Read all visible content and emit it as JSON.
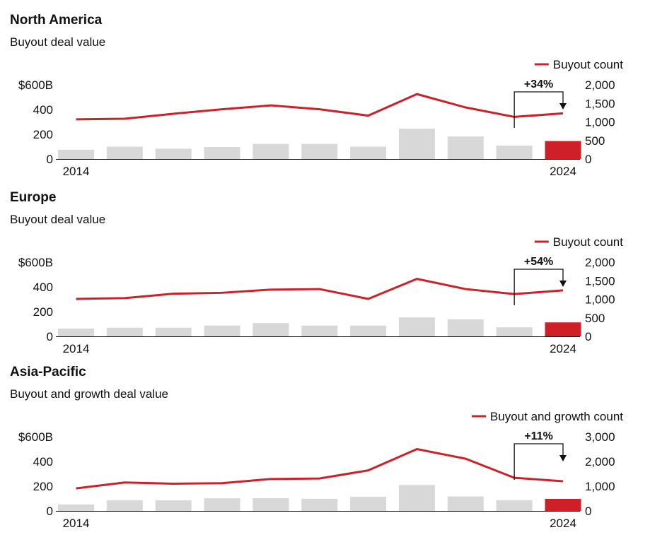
{
  "colors": {
    "bar": "#d8d8d8",
    "highlight": "#cf2027",
    "line": "#cf2027",
    "axis": "#111111"
  },
  "chart_data": [
    {
      "type": "bar",
      "title": "North America",
      "subtitle": "Buyout deal value",
      "categories": [
        "2014",
        "2015",
        "2016",
        "2017",
        "2018",
        "2019",
        "2020",
        "2021",
        "2022",
        "2023",
        "2024"
      ],
      "x_tick_labels": [
        "2014",
        "2024"
      ],
      "series": [
        {
          "axis": "left",
          "values": [
            75,
            100,
            83,
            97,
            122,
            122,
            100,
            245,
            182,
            108,
            145
          ]
        },
        {
          "name": "Buyout count",
          "type": "line",
          "axis": "right",
          "values": [
            1070,
            1085,
            1220,
            1340,
            1445,
            1340,
            1170,
            1750,
            1390,
            1135,
            1230
          ]
        }
      ],
      "left_axis": {
        "ticks": [
          "$600B",
          "400",
          "200",
          "0"
        ],
        "ylim": [
          0,
          600
        ]
      },
      "right_axis": {
        "ticks": [
          "2,000",
          "1,500",
          "1,000",
          "500",
          "0"
        ],
        "ylim": [
          0,
          2000
        ]
      },
      "annotation": "+34%"
    },
    {
      "type": "bar",
      "title": "Europe",
      "subtitle": "Buyout deal value",
      "categories": [
        "2014",
        "2015",
        "2016",
        "2017",
        "2018",
        "2019",
        "2020",
        "2021",
        "2022",
        "2023",
        "2024"
      ],
      "x_tick_labels": [
        "2014",
        "2024"
      ],
      "series": [
        {
          "axis": "left",
          "values": [
            63,
            70,
            70,
            87,
            108,
            87,
            87,
            153,
            138,
            73,
            113
          ]
        },
        {
          "name": "Buyout count",
          "type": "line",
          "axis": "right",
          "values": [
            1010,
            1030,
            1150,
            1175,
            1260,
            1275,
            1010,
            1550,
            1275,
            1140,
            1240
          ]
        }
      ],
      "left_axis": {
        "ticks": [
          "$600B",
          "400",
          "200",
          "0"
        ],
        "ylim": [
          0,
          600
        ]
      },
      "right_axis": {
        "ticks": [
          "2,000",
          "1,500",
          "1,000",
          "500",
          "0"
        ],
        "ylim": [
          0,
          2000
        ]
      },
      "annotation": "+54%"
    },
    {
      "type": "bar",
      "title": "Asia-Pacific",
      "subtitle": "Buyout and growth deal value",
      "categories": [
        "2014",
        "2015",
        "2016",
        "2017",
        "2018",
        "2019",
        "2020",
        "2021",
        "2022",
        "2023",
        "2024"
      ],
      "x_tick_labels": [
        "2014",
        "2024"
      ],
      "series": [
        {
          "axis": "left",
          "values": [
            52,
            87,
            85,
            102,
            103,
            98,
            115,
            210,
            117,
            87,
            97
          ]
        },
        {
          "name": "Buyout and growth count",
          "type": "line",
          "axis": "right",
          "values": [
            910,
            1150,
            1100,
            1120,
            1290,
            1310,
            1640,
            2500,
            2110,
            1340,
            1200
          ]
        }
      ],
      "left_axis": {
        "ticks": [
          "$600B",
          "400",
          "200",
          "0"
        ],
        "ylim": [
          0,
          600
        ]
      },
      "right_axis": {
        "ticks": [
          "3,000",
          "2,000",
          "1,000",
          "0"
        ],
        "ylim": [
          0,
          3000
        ]
      },
      "annotation": "+11%"
    }
  ]
}
